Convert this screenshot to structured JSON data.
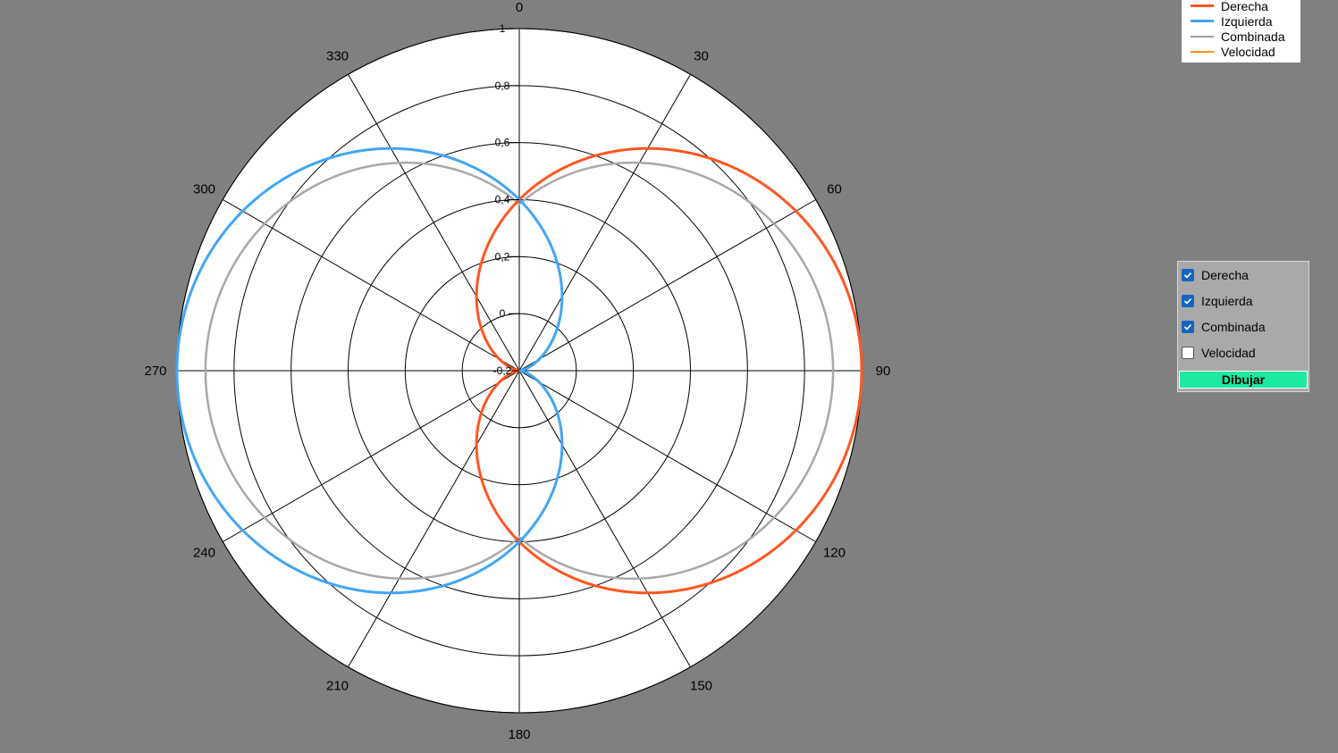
{
  "chart_data": {
    "type": "polar-line",
    "title": "",
    "angle_ticks": [
      "0",
      "30",
      "60",
      "90",
      "120",
      "150",
      "180",
      "210",
      "240",
      "270",
      "300",
      "330"
    ],
    "radial_ticks": [
      "-0,2",
      "0",
      "0,2",
      "0,4",
      "0,6",
      "0,8",
      "1"
    ],
    "radial_range": [
      -0.2,
      1.0
    ],
    "grid": true,
    "legend_position": "top-right",
    "series": [
      {
        "name": "Derecha",
        "color": "#ff5722",
        "formula": "0.4 + 0.6*sin(theta)"
      },
      {
        "name": "Izquierda",
        "color": "#42a5f5",
        "formula": "0.4 - 0.6*sin(theta)"
      },
      {
        "name": "Combinada",
        "color": "#a9a9a9",
        "formula": "max(Derecha, Izquierda)"
      },
      {
        "name": "Velocidad",
        "color": "#ff8c1a",
        "formula": "not drawn"
      }
    ]
  },
  "legend": {
    "items": [
      {
        "label": "Derecha",
        "color": "#ff5722"
      },
      {
        "label": "Izquierda",
        "color": "#42a5f5"
      },
      {
        "label": "Combinada",
        "color": "#a0a0a0"
      },
      {
        "label": "Velocidad",
        "color": "#ff8c1a"
      }
    ]
  },
  "controls": {
    "checkboxes": [
      {
        "label": "Derecha",
        "checked": true
      },
      {
        "label": "Izquierda",
        "checked": true
      },
      {
        "label": "Combinada",
        "checked": true
      },
      {
        "label": "Velocidad",
        "checked": false
      }
    ],
    "draw_button": "Dibujar"
  }
}
